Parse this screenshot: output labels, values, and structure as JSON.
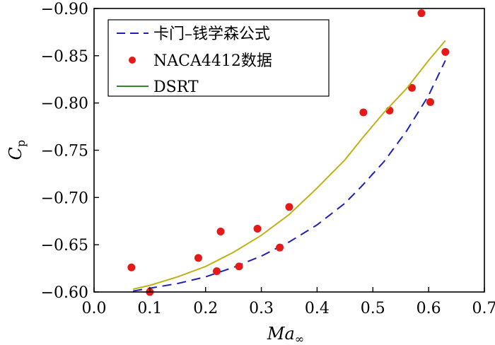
{
  "chart_data": {
    "type": "line",
    "xlabel": "Ma",
    "xlabel_sub": "∞",
    "ylabel": "C",
    "ylabel_sub": "p",
    "xlim": [
      0.0,
      0.7
    ],
    "ylim": [
      -0.6,
      -0.9
    ],
    "y_inverted": true,
    "grid": false,
    "legend_position": "top-left",
    "x_ticks": [
      "0.0",
      "0.1",
      "0.2",
      "0.3",
      "0.4",
      "0.5",
      "0.6",
      "0.7"
    ],
    "x_tick_values": [
      0.0,
      0.1,
      0.2,
      0.3,
      0.4,
      0.5,
      0.6,
      0.7
    ],
    "y_ticks": [
      "−0.60",
      "−0.65",
      "−0.70",
      "−0.75",
      "−0.80",
      "−0.85",
      "−0.90"
    ],
    "y_tick_values": [
      -0.6,
      -0.65,
      -0.7,
      -0.75,
      -0.8,
      -0.85,
      -0.9
    ],
    "series": [
      {
        "name": "卡门–钱学森公式",
        "kind": "line",
        "style": "dashed",
        "color": "#1f1fbf",
        "x": [
          0.07,
          0.1,
          0.15,
          0.2,
          0.25,
          0.3,
          0.35,
          0.4,
          0.45,
          0.48,
          0.52,
          0.56,
          0.6,
          0.63
        ],
        "y": [
          -0.601,
          -0.604,
          -0.609,
          -0.616,
          -0.626,
          -0.638,
          -0.653,
          -0.671,
          -0.694,
          -0.712,
          -0.738,
          -0.77,
          -0.808,
          -0.845
        ]
      },
      {
        "name": "NACA4412数据",
        "kind": "scatter",
        "color": "#e61919",
        "x": [
          0.067,
          0.1,
          0.187,
          0.22,
          0.227,
          0.26,
          0.293,
          0.333,
          0.35,
          0.483,
          0.53,
          0.57,
          0.587,
          0.603,
          0.63
        ],
        "y": [
          -0.626,
          -0.6,
          -0.636,
          -0.622,
          -0.664,
          -0.627,
          -0.667,
          -0.647,
          -0.69,
          -0.79,
          -0.792,
          -0.816,
          -0.895,
          -0.801,
          -0.854
        ]
      },
      {
        "name": "DSRT",
        "kind": "line",
        "style": "solid",
        "color": "#bfb219",
        "legend_color": "#2e8b22",
        "x": [
          0.07,
          0.1,
          0.15,
          0.2,
          0.25,
          0.3,
          0.35,
          0.4,
          0.45,
          0.48,
          0.52,
          0.56,
          0.6,
          0.63
        ],
        "y": [
          -0.603,
          -0.607,
          -0.616,
          -0.627,
          -0.642,
          -0.66,
          -0.682,
          -0.71,
          -0.74,
          -0.762,
          -0.79,
          -0.815,
          -0.845,
          -0.866
        ]
      }
    ]
  }
}
